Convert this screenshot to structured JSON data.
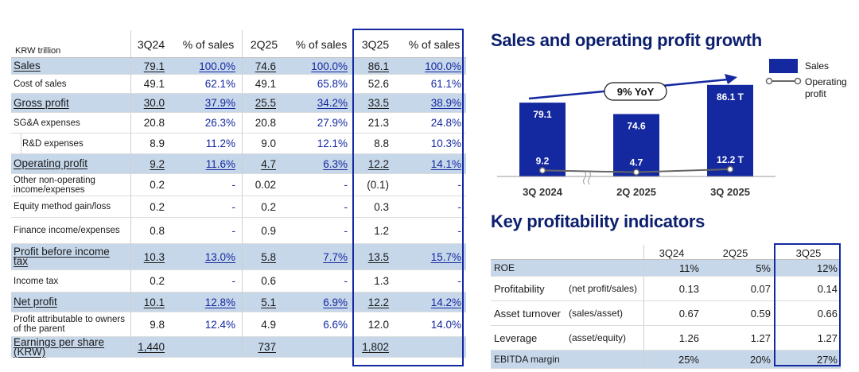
{
  "income_statement": {
    "unit_label": "KRW trillion",
    "columns": [
      "3Q24",
      "% of sales",
      "2Q25",
      "% of sales",
      "3Q25",
      "% of sales"
    ],
    "rows": [
      {
        "label": "Sales",
        "values": [
          "79.1",
          "100.0%",
          "74.6",
          "100.0%",
          "86.1",
          "100.0%"
        ],
        "highlight": true
      },
      {
        "label": "Cost of sales",
        "values": [
          "49.1",
          "62.1%",
          "49.1",
          "65.8%",
          "52.6",
          "61.1%"
        ]
      },
      {
        "label": "Gross profit",
        "values": [
          "30.0",
          "37.9%",
          "25.5",
          "34.2%",
          "33.5",
          "38.9%"
        ],
        "highlight": true
      },
      {
        "label": "SG&A expenses",
        "values": [
          "20.8",
          "26.3%",
          "20.8",
          "27.9%",
          "21.3",
          "24.8%"
        ]
      },
      {
        "label": "R&D expenses",
        "values": [
          "8.9",
          "11.2%",
          "9.0",
          "12.1%",
          "8.8",
          "10.3%"
        ],
        "indent": true
      },
      {
        "label": "Operating profit",
        "values": [
          "9.2",
          "11.6%",
          "4.7",
          "6.3%",
          "12.2",
          "14.1%"
        ],
        "highlight": true
      },
      {
        "label": "Other non-operating income/expenses",
        "values": [
          "0.2",
          "-",
          "0.02",
          "-",
          "(0.1)",
          "-"
        ]
      },
      {
        "label": "Equity method gain/loss",
        "values": [
          "0.2",
          "-",
          "0.2",
          "-",
          "0.3",
          "-"
        ]
      },
      {
        "label": "Finance income/expenses",
        "values": [
          "0.8",
          "-",
          "0.9",
          "-",
          "1.2",
          "-"
        ]
      },
      {
        "label": "Profit before income tax",
        "values": [
          "10.3",
          "13.0%",
          "5.8",
          "7.7%",
          "13.5",
          "15.7%"
        ],
        "highlight": true
      },
      {
        "label": "Income tax",
        "values": [
          "0.2",
          "-",
          "0.6",
          "-",
          "1.3",
          "-"
        ]
      },
      {
        "label": "Net profit",
        "values": [
          "10.1",
          "12.8%",
          "5.1",
          "6.9%",
          "12.2",
          "14.2%"
        ],
        "highlight": true
      },
      {
        "label": "Profit attributable to owners of the parent",
        "values": [
          "9.8",
          "12.4%",
          "4.9",
          "6.6%",
          "12.0",
          "14.0%"
        ]
      },
      {
        "label": "Earnings per share (KRW)",
        "values": [
          "1,440",
          "",
          "737",
          "",
          "1,802",
          ""
        ],
        "highlight": true
      }
    ]
  },
  "growth_chart": {
    "title": "Sales and operating profit growth",
    "yoy_label": "9% YoY",
    "legend": {
      "sales": "Sales",
      "operating_profit": "Operating profit"
    },
    "colors": {
      "bar": "#1428a0",
      "line": "#666666",
      "accent": "#1428a0"
    }
  },
  "chart_data": {
    "type": "bar",
    "title": "Sales and operating profit growth",
    "categories": [
      "3Q 2024",
      "2Q 2025",
      "3Q 2025"
    ],
    "series": [
      {
        "name": "Sales",
        "values": [
          79.1,
          74.6,
          86.1
        ],
        "labels": [
          "79.1",
          "74.6",
          "86.1 T"
        ]
      },
      {
        "name": "Operating profit",
        "values": [
          9.2,
          4.7,
          12.2
        ],
        "labels": [
          "9.2",
          "4.7",
          "12.2 T"
        ],
        "style": "line"
      }
    ],
    "annotation": "9% YoY"
  },
  "kpi": {
    "title": "Key profitability indicators",
    "columns": [
      "3Q24",
      "2Q25",
      "3Q25"
    ],
    "rows": [
      {
        "label": "ROE",
        "note": "",
        "values": [
          "11%",
          "5%",
          "12%"
        ],
        "highlight": true
      },
      {
        "label": "Profitability",
        "note": "(net profit/sales)",
        "values": [
          "0.13",
          "0.07",
          "0.14"
        ]
      },
      {
        "label": "Asset turnover",
        "note": "(sales/asset)",
        "values": [
          "0.67",
          "0.59",
          "0.66"
        ]
      },
      {
        "label": "Leverage",
        "note": "(asset/equity)",
        "values": [
          "1.26",
          "1.27",
          "1.27"
        ]
      },
      {
        "label": "EBITDA margin",
        "note": "",
        "values": [
          "25%",
          "20%",
          "27%"
        ],
        "highlight": true
      }
    ]
  }
}
